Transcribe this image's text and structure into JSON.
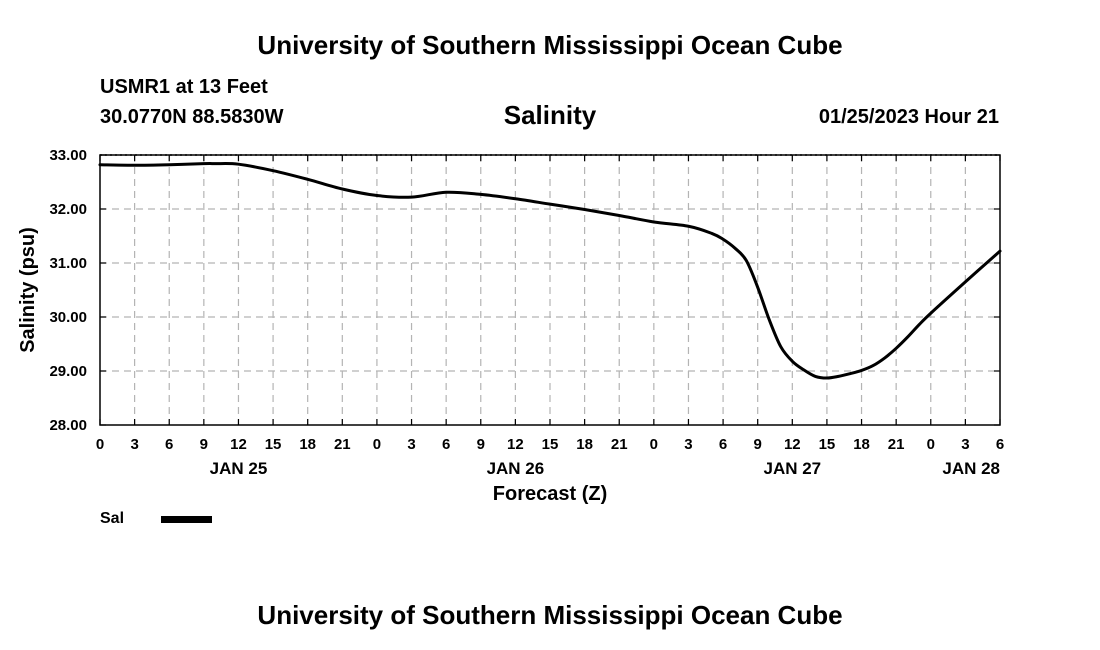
{
  "page": {
    "title_top": "University of Southern Mississippi Ocean Cube",
    "title_bottom": "University of Southern Mississippi Ocean Cube",
    "station": "USMR1 at 13 Feet",
    "coords": "30.0770N  88.5830W",
    "run_time": "01/25/2023 Hour 21"
  },
  "legend": {
    "label": "Sal",
    "color": "#000000"
  },
  "chart_data": {
    "type": "line",
    "title": "Salinity",
    "xlabel": "Forecast (Z)",
    "ylabel": "Salinity (psu)",
    "ylim": [
      28.0,
      33.0
    ],
    "xlim": [
      0,
      78
    ],
    "yticks": [
      "28.00",
      "29.00",
      "30.00",
      "31.00",
      "32.00",
      "33.00"
    ],
    "xticks": [
      "0",
      "3",
      "6",
      "9",
      "12",
      "15",
      "18",
      "21",
      "0",
      "3",
      "6",
      "9",
      "12",
      "15",
      "18",
      "21",
      "0",
      "3",
      "6",
      "9",
      "12",
      "15",
      "18",
      "21",
      "0",
      "3",
      "6"
    ],
    "day_labels": [
      {
        "label": "JAN 25",
        "hour": 12
      },
      {
        "label": "JAN 26",
        "hour": 36
      },
      {
        "label": "JAN 27",
        "hour": 60
      },
      {
        "label": "JAN 28",
        "hour": 78
      }
    ],
    "grid": true,
    "series": [
      {
        "name": "Sal",
        "color": "#000000",
        "x": [
          0,
          3,
          6,
          9,
          10,
          12,
          15,
          18,
          21,
          24,
          27,
          30,
          33,
          36,
          39,
          42,
          45,
          48,
          51,
          53,
          54,
          55,
          56,
          57,
          58,
          59,
          60,
          61,
          62,
          63,
          64,
          65,
          66,
          67,
          68,
          69,
          70,
          71,
          72,
          75,
          78
        ],
        "values": [
          32.82,
          32.81,
          32.82,
          32.84,
          32.84,
          32.83,
          32.71,
          32.55,
          32.37,
          32.25,
          32.22,
          32.31,
          32.27,
          32.19,
          32.09,
          31.99,
          31.88,
          31.76,
          31.68,
          31.55,
          31.44,
          31.28,
          31.05,
          30.55,
          29.95,
          29.45,
          29.18,
          29.02,
          28.9,
          28.87,
          28.9,
          28.95,
          29.01,
          29.1,
          29.24,
          29.42,
          29.63,
          29.86,
          30.07,
          30.65,
          31.22
        ]
      }
    ]
  }
}
